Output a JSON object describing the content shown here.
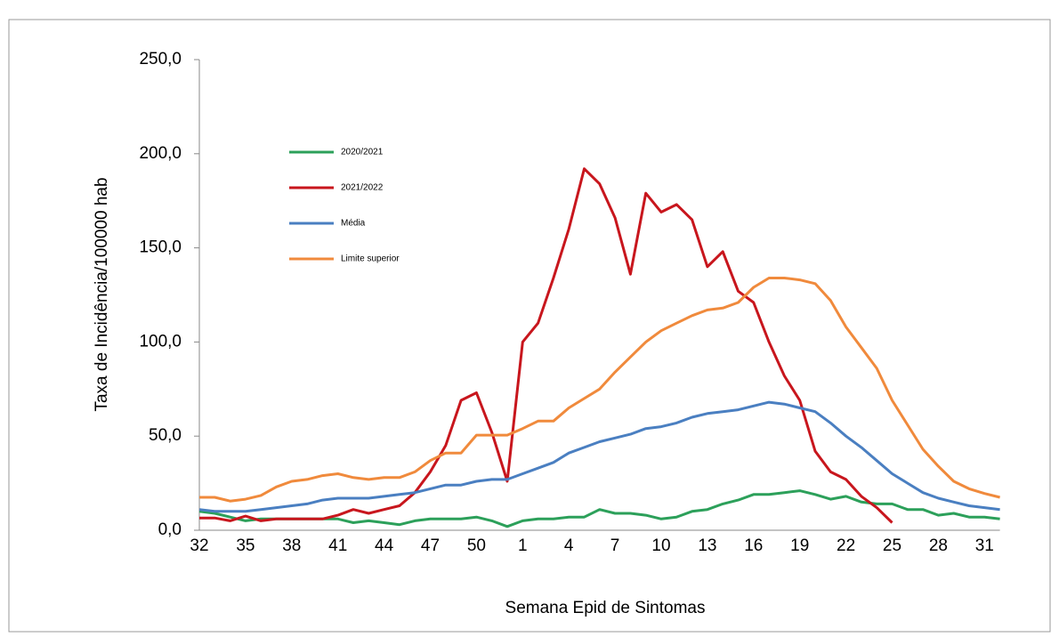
{
  "chart_data": {
    "type": "line",
    "x_label": "Semana Epid de Sintomas",
    "y_label": "Taxa de Incidência/100000 hab",
    "categories": [
      "32",
      null,
      null,
      "35",
      null,
      null,
      "38",
      null,
      null,
      "41",
      null,
      null,
      "44",
      null,
      null,
      "47",
      null,
      null,
      "50",
      null,
      null,
      "1",
      null,
      null,
      "4",
      null,
      null,
      "7",
      null,
      null,
      "10",
      null,
      null,
      "13",
      null,
      null,
      "16",
      null,
      null,
      "19",
      null,
      null,
      "22",
      null,
      null,
      "25",
      null,
      null,
      "28",
      null,
      null,
      "31",
      null
    ],
    "series": [
      {
        "name": "2020/2021",
        "color": "#2ca05a",
        "values": [
          10,
          9,
          7,
          5,
          6,
          6,
          6,
          6,
          6,
          6,
          4,
          5,
          4,
          3,
          5,
          6,
          6,
          6,
          7,
          5,
          2,
          5,
          6,
          6,
          7,
          7,
          11,
          9,
          9,
          8,
          6,
          7,
          10,
          11,
          14,
          16,
          19,
          19,
          20,
          21,
          19,
          16.5,
          18,
          15,
          14,
          14,
          11,
          11,
          8,
          9,
          7,
          7,
          6
        ]
      },
      {
        "name": "2021/2022",
        "color": "#c8161d",
        "values": [
          6.5,
          6.5,
          5,
          7.5,
          5,
          6,
          6,
          6,
          6,
          8,
          11,
          9,
          11,
          13,
          20,
          31,
          45,
          69,
          73,
          52,
          26,
          100,
          110,
          134,
          160,
          192,
          184,
          166,
          136,
          179,
          169,
          173,
          165,
          140,
          148,
          127,
          121,
          100,
          82,
          69,
          42,
          31,
          27,
          18,
          12,
          4,
          null,
          null,
          null,
          null,
          null,
          null,
          null
        ]
      },
      {
        "name": "Média",
        "color": "#4a7fc1",
        "values": [
          11,
          10,
          10,
          10,
          11,
          12,
          13,
          14,
          16,
          17,
          17,
          17,
          18,
          19,
          20,
          22,
          24,
          24,
          26,
          27,
          27,
          30,
          33,
          36,
          41,
          44,
          47,
          49,
          51,
          54,
          55,
          57,
          60,
          62,
          63,
          64,
          66,
          68,
          67,
          65,
          63,
          57,
          50,
          44,
          37,
          30,
          25,
          20,
          17,
          15,
          13,
          12,
          11
        ]
      },
      {
        "name": "Limite superior",
        "color": "#f08a3c",
        "values": [
          17.5,
          17.5,
          15.5,
          16.5,
          18.5,
          23,
          26,
          27,
          29,
          30,
          28,
          27,
          28,
          28,
          31,
          37,
          41,
          41,
          50.5,
          50.5,
          50.5,
          54,
          58,
          58,
          65,
          70,
          75,
          84,
          92,
          100,
          106,
          110,
          114,
          117,
          118,
          121,
          129,
          134,
          134,
          133,
          131,
          122,
          108,
          97,
          86,
          69,
          56,
          43,
          34,
          26,
          22,
          19.5,
          17.5
        ]
      }
    ],
    "ylim": [
      0,
      250
    ],
    "yticks": [
      {
        "value": 0,
        "label": "0,0"
      },
      {
        "value": 50,
        "label": "50,0"
      },
      {
        "value": 100,
        "label": "100,0"
      },
      {
        "value": 150,
        "label": "150,0"
      },
      {
        "value": 200,
        "label": "200,0"
      },
      {
        "value": 250,
        "label": "250,0"
      }
    ]
  }
}
